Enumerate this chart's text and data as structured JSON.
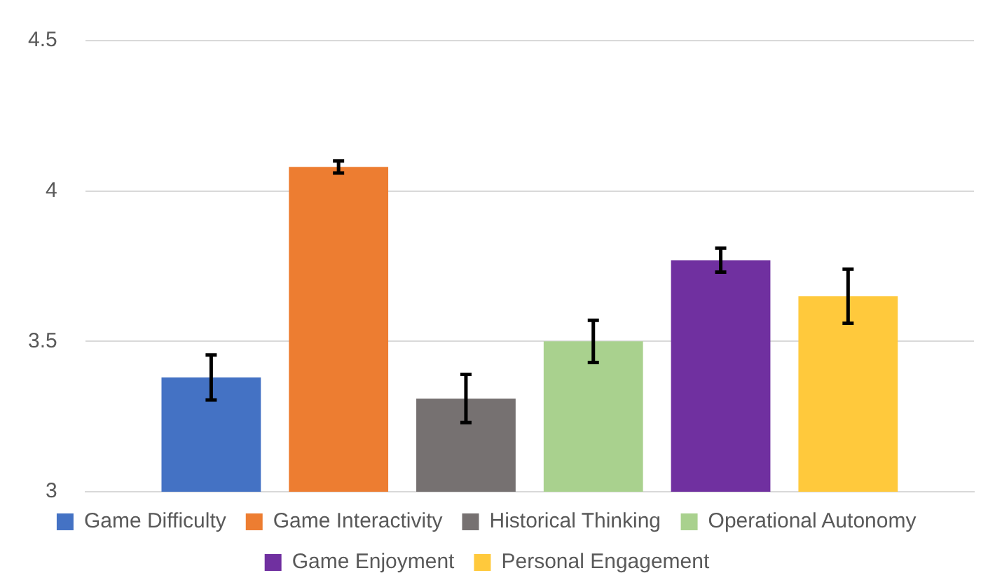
{
  "chart_data": {
    "type": "bar",
    "categories": [
      null
    ],
    "series": [
      {
        "name": "Game Difficulty",
        "color": "#4472c4",
        "values": [
          3.38
        ],
        "errors": [
          0.075
        ]
      },
      {
        "name": "Game Interactivity",
        "color": "#ed7d31",
        "values": [
          4.08
        ],
        "errors": [
          0.02
        ]
      },
      {
        "name": "Historical Thinking",
        "color": "#767171",
        "values": [
          3.31
        ],
        "errors": [
          0.08
        ]
      },
      {
        "name": "Operational Autonomy",
        "color": "#a9d18e",
        "values": [
          3.5
        ],
        "errors": [
          0.07
        ]
      },
      {
        "name": "Game Enjoyment",
        "color": "#7030a0",
        "values": [
          3.77
        ],
        "errors": [
          0.04
        ]
      },
      {
        "name": "Personal Engagement",
        "color": "#ffc93c",
        "values": [
          3.65
        ],
        "errors": [
          0.09
        ]
      }
    ],
    "ylim": [
      3,
      4.5
    ],
    "yticks": [
      3,
      3.5,
      4,
      4.5
    ],
    "grid": "y",
    "legend": "bottom"
  }
}
